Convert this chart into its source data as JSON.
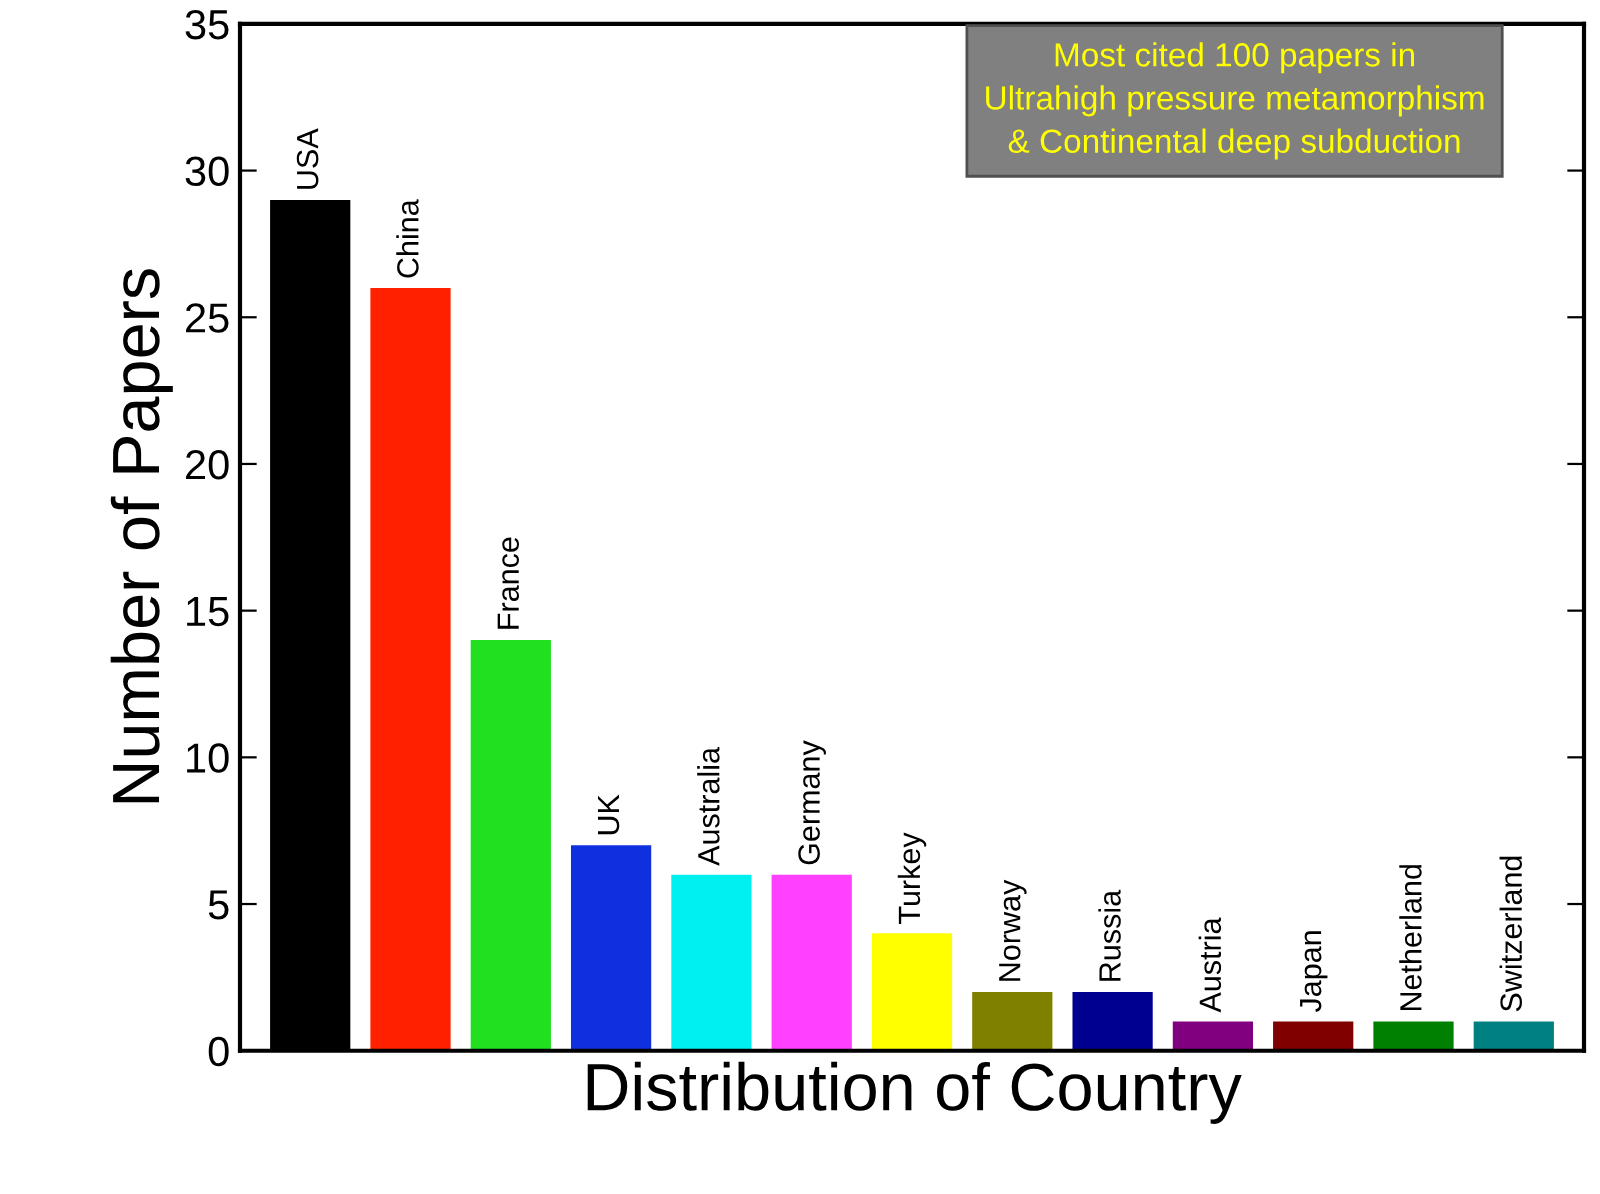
{
  "chart_data": {
    "type": "bar",
    "categories": [
      "USA",
      "China",
      "France",
      "UK",
      "Australia",
      "Germany",
      "Turkey",
      "Norway",
      "Russia",
      "Austria",
      "Japan",
      "Netherland",
      "Switzerland"
    ],
    "values": [
      29,
      26,
      14,
      7,
      6,
      6,
      4,
      2,
      2,
      1,
      1,
      1,
      1
    ],
    "colors": [
      "#000000",
      "#ff2000",
      "#20e020",
      "#1030e0",
      "#00f0f0",
      "#ff40ff",
      "#ffff00",
      "#808000",
      "#000090",
      "#800080",
      "#800000",
      "#008000",
      "#008080"
    ],
    "xlabel": "Distribution of Country",
    "ylabel": "Number of Papers",
    "ylim": [
      0,
      35
    ],
    "yticks": [
      0,
      5,
      10,
      15,
      20,
      25,
      30,
      35
    ],
    "tick_labels": "y",
    "grid": false,
    "legend": false,
    "annotations": [
      "Most cited 100 papers in\nUltrahigh pressure metamorphism\n& Continental deep subduction"
    ]
  }
}
